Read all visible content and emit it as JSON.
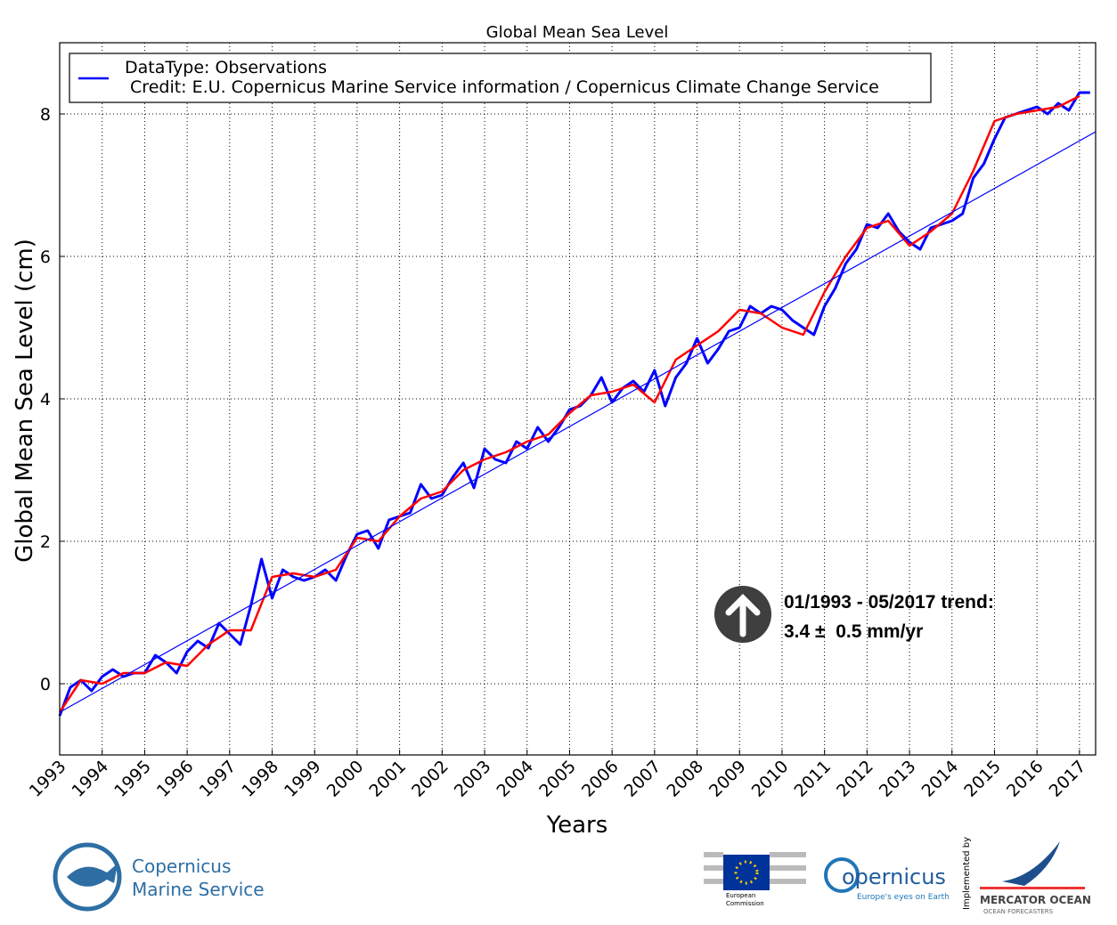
{
  "chart_data": {
    "type": "line",
    "title": "Global Mean Sea Level",
    "x_label": "Years",
    "y_label": "Global Mean Sea Level (cm)",
    "legend_credit": " Credit: E.U. Copernicus Marine Service information / Copernicus Climate Change Service",
    "annotations": [
      "01/1993 - 05/2017 trend:",
      "3.4 ±  0.5 mm/yr"
    ],
    "xlim": [
      1993,
      2017.38
    ],
    "ylim": [
      -1,
      9
    ],
    "xticks": [
      1993,
      1994,
      1995,
      1996,
      1997,
      1998,
      1999,
      2000,
      2001,
      2002,
      2003,
      2004,
      2005,
      2006,
      2007,
      2008,
      2009,
      2010,
      2011,
      2012,
      2013,
      2014,
      2015,
      2016,
      2017
    ],
    "yticks": [
      0,
      2,
      4,
      6,
      8
    ],
    "grid": true,
    "series": [
      {
        "name": "DataType: Observations",
        "color": "#0000ff",
        "x": [
          1993,
          1993.25,
          1993.5,
          1993.75,
          1994,
          1994.25,
          1994.5,
          1994.75,
          1995,
          1995.25,
          1995.5,
          1995.75,
          1996,
          1996.25,
          1996.5,
          1996.75,
          1997,
          1997.25,
          1997.5,
          1997.75,
          1998,
          1998.25,
          1998.5,
          1998.75,
          1999,
          1999.25,
          1999.5,
          1999.75,
          2000,
          2000.25,
          2000.5,
          2000.75,
          2001,
          2001.25,
          2001.5,
          2001.75,
          2002,
          2002.25,
          2002.5,
          2002.75,
          2003,
          2003.25,
          2003.5,
          2003.75,
          2004,
          2004.25,
          2004.5,
          2004.75,
          2005,
          2005.25,
          2005.5,
          2005.75,
          2006,
          2006.25,
          2006.5,
          2006.75,
          2007,
          2007.25,
          2007.5,
          2007.75,
          2008,
          2008.25,
          2008.5,
          2008.75,
          2009,
          2009.25,
          2009.5,
          2009.75,
          2010,
          2010.25,
          2010.5,
          2010.75,
          2011,
          2011.25,
          2011.5,
          2011.75,
          2012,
          2012.25,
          2012.5,
          2012.75,
          2013,
          2013.25,
          2013.5,
          2013.75,
          2014,
          2014.25,
          2014.5,
          2014.75,
          2015,
          2015.25,
          2015.5,
          2015.75,
          2016,
          2016.25,
          2016.5,
          2016.75,
          2017,
          2017.25
        ],
        "values": [
          -0.45,
          -0.05,
          0.05,
          -0.1,
          0.1,
          0.2,
          0.1,
          0.15,
          0.15,
          0.4,
          0.3,
          0.15,
          0.45,
          0.6,
          0.5,
          0.85,
          0.7,
          0.55,
          1.1,
          1.75,
          1.2,
          1.6,
          1.5,
          1.45,
          1.5,
          1.6,
          1.45,
          1.8,
          2.1,
          2.15,
          1.9,
          2.3,
          2.35,
          2.4,
          2.8,
          2.6,
          2.65,
          2.9,
          3.1,
          2.75,
          3.3,
          3.15,
          3.1,
          3.4,
          3.3,
          3.6,
          3.4,
          3.6,
          3.85,
          3.9,
          4.05,
          4.3,
          3.95,
          4.15,
          4.25,
          4.1,
          4.4,
          3.9,
          4.3,
          4.5,
          4.85,
          4.5,
          4.7,
          4.95,
          5.0,
          5.3,
          5.2,
          5.3,
          5.25,
          5.1,
          5.0,
          4.9,
          5.3,
          5.55,
          5.9,
          6.1,
          6.45,
          6.4,
          6.6,
          6.35,
          6.2,
          6.1,
          6.4,
          6.45,
          6.5,
          6.6,
          7.1,
          7.3,
          7.65,
          7.95,
          8.0,
          8.05,
          8.1,
          8.0,
          8.15,
          8.05,
          8.3,
          8.3
        ]
      },
      {
        "color": "#ff0000",
        "x": [
          1993,
          1993.5,
          1994,
          1994.5,
          1995,
          1995.5,
          1996,
          1996.5,
          1997,
          1997.5,
          1998,
          1998.5,
          1999,
          1999.5,
          2000,
          2000.5,
          2001,
          2001.5,
          2002,
          2002.5,
          2003,
          2003.5,
          2004,
          2004.5,
          2005,
          2005.5,
          2006,
          2006.5,
          2007,
          2007.5,
          2008,
          2008.5,
          2009,
          2009.5,
          2010,
          2010.5,
          2011,
          2011.5,
          2012,
          2012.5,
          2013,
          2013.5,
          2014,
          2014.5,
          2015,
          2015.5,
          2016,
          2016.5,
          2017
        ],
        "values": [
          -0.4,
          0.05,
          0.0,
          0.15,
          0.15,
          0.3,
          0.25,
          0.55,
          0.75,
          0.75,
          1.5,
          1.55,
          1.5,
          1.6,
          2.05,
          2.0,
          2.35,
          2.6,
          2.7,
          3.0,
          3.15,
          3.25,
          3.4,
          3.5,
          3.8,
          4.05,
          4.1,
          4.2,
          3.95,
          4.55,
          4.75,
          4.95,
          5.25,
          5.2,
          5.0,
          4.9,
          5.5,
          6.0,
          6.4,
          6.5,
          6.15,
          6.35,
          6.6,
          7.2,
          7.9,
          8.0,
          8.05,
          8.1,
          8.25
        ]
      },
      {
        "color": "#0000ff",
        "x": [
          1993,
          2017.38
        ],
        "values": [
          -0.4,
          7.75
        ]
      }
    ]
  },
  "logos": [
    "Copernicus",
    "Marine Service",
    "European",
    "Commission",
    "opernicus",
    "Europe's eyes on Earth",
    "Implemented by",
    "MERCATOR OCEAN",
    "OCEAN FORECASTERS"
  ]
}
